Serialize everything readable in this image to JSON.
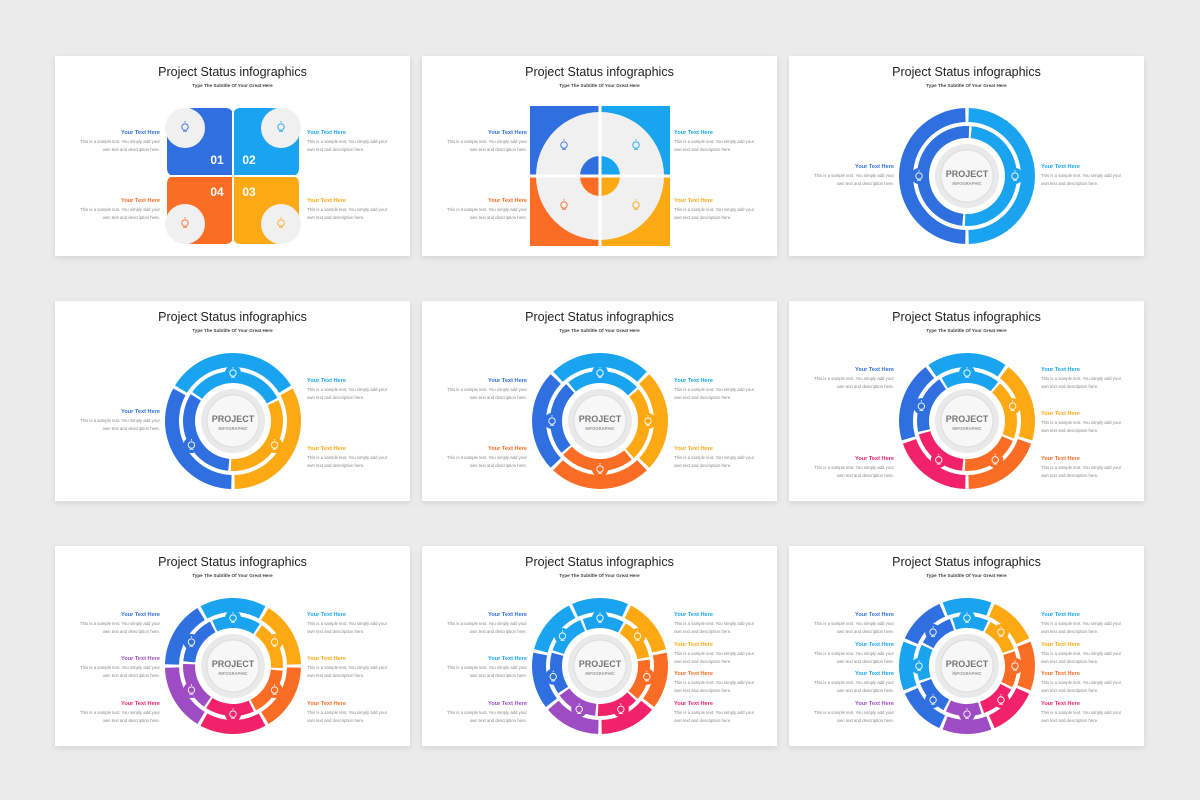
{
  "colors": {
    "blue": "#2f6fe0",
    "light_blue": "#1aa4f0",
    "orange": "#fb6d24",
    "yellow": "#fca914",
    "pink": "#f2226a",
    "purple": "#9e4cc3",
    "gray": "#f0f0f0"
  },
  "slides": [
    {
      "title": "Project Status infographics",
      "subtitle": "Type The Subtitle Of Your Great Here",
      "numbers": [
        "01",
        "02",
        "03",
        "04"
      ],
      "texts": [
        {
          "head": "Your Text Here",
          "desc1": "This is a sample text. You simply add your",
          "desc2": "own text and description here."
        },
        {
          "head": "Your Text Here",
          "desc1": "This is a sample text. You simply add your",
          "desc2": "own text and description here."
        },
        {
          "head": "Your Text Here",
          "desc1": "This is a sample text. You simply add your",
          "desc2": "own text and description here."
        },
        {
          "head": "Your Text Here",
          "desc1": "This is a sample text. You simply add your",
          "desc2": "own text and description here."
        }
      ]
    },
    {
      "title": "Project Status infographics",
      "subtitle": "Type The Subtitle Of Your Great Here",
      "texts": [
        {
          "head": "Your Text Here",
          "desc1": "This is a sample text. You simply add your",
          "desc2": "own text and description here."
        },
        {
          "head": "Your Text Here",
          "desc1": "This is a sample text. You simply add your",
          "desc2": "own text and description here."
        },
        {
          "head": "Your Text Here",
          "desc1": "This is a sample text. You simply add your",
          "desc2": "own text and description here."
        },
        {
          "head": "Your Text Here",
          "desc1": "This is a sample text. You simply add your",
          "desc2": "own text and description here."
        }
      ]
    },
    {
      "title": "Project Status infographics",
      "subtitle": "Type The Subtitle Of Your Great Here",
      "center": {
        "main": "PROJECT",
        "sub": "INFOGRAPHIC"
      },
      "texts": [
        {
          "head": "Your Text Here",
          "desc1": "This is a sample text. You simply add your",
          "desc2": "own text and description here."
        },
        {
          "head": "Your Text Here",
          "desc1": "This is a sample text. You simply add your",
          "desc2": "own text and description here."
        }
      ]
    },
    {
      "title": "Project Status infographics",
      "subtitle": "Type The Subtitle Of Your Great Here",
      "center": {
        "main": "PROJECT",
        "sub": "INFOGRAPHIC"
      },
      "texts": [
        {
          "head": "Your Text Here",
          "desc1": "This is a sample text. You simply add your",
          "desc2": "own text and description here."
        },
        {
          "head": "Your Text Here",
          "desc1": "This is a sample text. You simply add your",
          "desc2": "own text and description here."
        },
        {
          "head": "Your Text Here",
          "desc1": "This is a sample text. You simply add your",
          "desc2": "own text and description here."
        }
      ]
    },
    {
      "title": "Project Status infographics",
      "subtitle": "Type The Subtitle Of Your Great Here",
      "center": {
        "main": "PROJECT",
        "sub": "INFOGRAPHIC"
      },
      "texts": [
        {
          "head": "Your Text Here",
          "desc1": "This is a sample text. You simply add your",
          "desc2": "own text and description here."
        },
        {
          "head": "Your Text Here",
          "desc1": "This is a sample text. You simply add your",
          "desc2": "own text and description here."
        },
        {
          "head": "Your Text Here",
          "desc1": "This is a sample text. You simply add your",
          "desc2": "own text and description here."
        },
        {
          "head": "Your Text Here",
          "desc1": "This is a sample text. You simply add your",
          "desc2": "own text and description here."
        }
      ]
    },
    {
      "title": "Project Status infographics",
      "subtitle": "Type The Subtitle Of Your Great Here",
      "center": {
        "main": "PROJECT",
        "sub": "INFOGRAPHIC"
      },
      "texts": [
        {
          "head": "Your Text Here",
          "desc1": "This is a sample text. You simply add your",
          "desc2": "own text and description here."
        },
        {
          "head": "Your Text Here",
          "desc1": "This is a sample text. You simply add your",
          "desc2": "own text and description here."
        },
        {
          "head": "Your Text Here",
          "desc1": "This is a sample text. You simply add your",
          "desc2": "own text and description here."
        },
        {
          "head": "Your Text Here",
          "desc1": "This is a sample text. You simply add your",
          "desc2": "own text and description here."
        },
        {
          "head": "Your Text Here",
          "desc1": "This is a sample text. You simply add your",
          "desc2": "own text and description here."
        }
      ]
    },
    {
      "title": "Project Status infographics",
      "subtitle": "Type The Subtitle Of Your Great Here",
      "center": {
        "main": "PROJECT",
        "sub": "INFOGRAPHIC"
      },
      "texts": [
        {
          "head": "Your Text Here",
          "desc1": "This is a sample text. You simply add your",
          "desc2": "own text and description here."
        },
        {
          "head": "Your Text Here",
          "desc1": "This is a sample text. You simply add your",
          "desc2": "own text and description here."
        },
        {
          "head": "Your Text Here",
          "desc1": "This is a sample text. You simply add your",
          "desc2": "own text and description here."
        },
        {
          "head": "Your Text Here",
          "desc1": "This is a sample text. You simply add your",
          "desc2": "own text and description here."
        },
        {
          "head": "Your Text Here",
          "desc1": "This is a sample text. You simply add your",
          "desc2": "own text and description here."
        },
        {
          "head": "Your Text Here",
          "desc1": "This is a sample text. You simply add your",
          "desc2": "own text and description here."
        }
      ]
    },
    {
      "title": "Project Status infographics",
      "subtitle": "Type The Subtitle Of Your Great Here",
      "center": {
        "main": "PROJECT",
        "sub": "INFOGRAPHIC"
      },
      "texts": [
        {
          "head": "Your Text Here",
          "desc1": "This is a sample text. You simply add your",
          "desc2": "own text and description here."
        },
        {
          "head": "Your Text Here",
          "desc1": "This is a sample text. You simply add your",
          "desc2": "own text and description here."
        },
        {
          "head": "Your Text Here",
          "desc1": "This is a sample text. You simply add your",
          "desc2": "own text and description here."
        },
        {
          "head": "Your Text Here",
          "desc1": "This is a sample text. You simply add your",
          "desc2": "own text and description here."
        },
        {
          "head": "Your Text Here",
          "desc1": "This is a sample text. You simply add your",
          "desc2": "own text and description here."
        },
        {
          "head": "Your Text Here",
          "desc1": "This is a sample text. You simply add your",
          "desc2": "own text and description here."
        },
        {
          "head": "Your Text Here",
          "desc1": "This is a sample text. You simply add your",
          "desc2": "own text and description here."
        }
      ]
    },
    {
      "title": "Project Status infographics",
      "subtitle": "Type The Subtitle Of Your Great Here",
      "center": {
        "main": "PROJECT",
        "sub": "INFOGRAPHIC"
      },
      "texts": [
        {
          "head": "Your Text Here",
          "desc1": "This is a sample text. You simply add your",
          "desc2": "own text and description here."
        },
        {
          "head": "Your Text Here",
          "desc1": "This is a sample text. You simply add your",
          "desc2": "own text and description here."
        },
        {
          "head": "Your Text Here",
          "desc1": "This is a sample text. You simply add your",
          "desc2": "own text and description here."
        },
        {
          "head": "Your Text Here",
          "desc1": "This is a sample text. You simply add your",
          "desc2": "own text and description here."
        },
        {
          "head": "Your Text Here",
          "desc1": "This is a sample text. You simply add your",
          "desc2": "own text and description here."
        },
        {
          "head": "Your Text Here",
          "desc1": "This is a sample text. You simply add your",
          "desc2": "own text and description here."
        },
        {
          "head": "Your Text Here",
          "desc1": "This is a sample text. You simply add your",
          "desc2": "own text and description here."
        },
        {
          "head": "Your Text Here",
          "desc1": "This is a sample text. You simply add your",
          "desc2": "own text and description here."
        }
      ]
    }
  ]
}
